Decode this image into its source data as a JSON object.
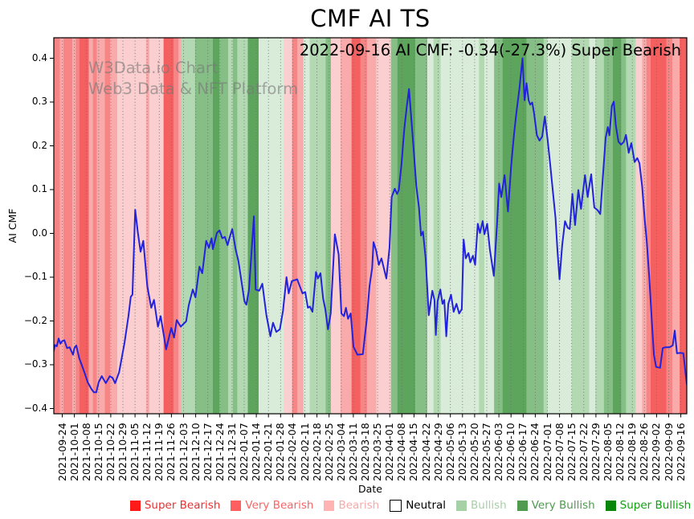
{
  "annotation": {
    "text": "2022-09-16 AI CMF: -0.34(-27.3%) Super Bearish"
  },
  "watermark": {
    "line1": "W3Data.io Chart",
    "line2": "Web3 Data & NFT Platform"
  },
  "chart_data": {
    "type": "line",
    "title": "CMF AI TS",
    "xlabel": "Date",
    "ylabel": "AI CMF",
    "ylim": [
      -0.41,
      0.45
    ],
    "grid": "weekly-vertical-dotted",
    "legend_position": "bottom",
    "line": {
      "name": "AI CMF",
      "color": "#2222dd"
    },
    "y_tick_labels": [
      "0.4",
      "0.3",
      "0.2",
      "0.1",
      "0.0",
      "−0.1",
      "−0.2",
      "−0.3",
      "−0.4"
    ],
    "x_tick_labels": [
      "2021-09-24",
      "2021-10-01",
      "2021-10-08",
      "2021-10-15",
      "2021-10-22",
      "2021-10-29",
      "2021-11-05",
      "2021-11-12",
      "2021-11-19",
      "2021-11-26",
      "2021-12-03",
      "2021-12-10",
      "2021-12-17",
      "2021-12-24",
      "2021-12-31",
      "2022-01-07",
      "2022-01-14",
      "2022-01-21",
      "2022-01-28",
      "2022-02-04",
      "2022-02-11",
      "2022-02-18",
      "2022-02-25",
      "2022-03-04",
      "2022-03-11",
      "2022-03-18",
      "2022-03-25",
      "2022-04-01",
      "2022-04-08",
      "2022-04-15",
      "2022-04-22",
      "2022-04-29",
      "2022-05-06",
      "2022-05-13",
      "2022-05-20",
      "2022-05-27",
      "2022-06-03",
      "2022-06-10",
      "2022-06-17",
      "2022-06-24",
      "2022-07-01",
      "2022-07-08",
      "2022-07-15",
      "2022-07-22",
      "2022-07-29",
      "2022-08-05",
      "2022-08-12",
      "2022-08-19",
      "2022-08-26",
      "2022-09-02",
      "2022-09-09",
      "2022-09-16"
    ],
    "series_points_weeks_value": [
      [
        -0.73,
        -0.272
      ],
      [
        -0.6,
        -0.255
      ],
      [
        -0.45,
        -0.258
      ],
      [
        -0.3,
        -0.24
      ],
      [
        -0.15,
        -0.252
      ],
      [
        0,
        -0.246
      ],
      [
        0.17,
        -0.244
      ],
      [
        0.4,
        -0.262
      ],
      [
        0.6,
        -0.26
      ],
      [
        0.89,
        -0.277
      ],
      [
        1,
        -0.262
      ],
      [
        1.16,
        -0.256
      ],
      [
        1.4,
        -0.285
      ],
      [
        1.6,
        -0.3
      ],
      [
        1.82,
        -0.317
      ],
      [
        2.1,
        -0.34
      ],
      [
        2.4,
        -0.355
      ],
      [
        2.6,
        -0.363
      ],
      [
        2.81,
        -0.363
      ],
      [
        3,
        -0.34
      ],
      [
        3.26,
        -0.326
      ],
      [
        3.59,
        -0.342
      ],
      [
        3.92,
        -0.326
      ],
      [
        4.15,
        -0.33
      ],
      [
        4.36,
        -0.342
      ],
      [
        4.69,
        -0.317
      ],
      [
        5.13,
        -0.25
      ],
      [
        5.46,
        -0.189
      ],
      [
        5.65,
        -0.145
      ],
      [
        5.79,
        -0.14
      ],
      [
        6.01,
        0.054
      ],
      [
        6.24,
        0.001
      ],
      [
        6.46,
        -0.042
      ],
      [
        6.68,
        -0.017
      ],
      [
        7.01,
        -0.121
      ],
      [
        7.34,
        -0.17
      ],
      [
        7.56,
        -0.152
      ],
      [
        7.89,
        -0.213
      ],
      [
        8.11,
        -0.189
      ],
      [
        8.56,
        -0.265
      ],
      [
        8.99,
        -0.216
      ],
      [
        9.22,
        -0.238
      ],
      [
        9.44,
        -0.198
      ],
      [
        9.77,
        -0.213
      ],
      [
        10.21,
        -0.201
      ],
      [
        10.43,
        -0.164
      ],
      [
        10.76,
        -0.128
      ],
      [
        10.98,
        -0.146
      ],
      [
        11.31,
        -0.076
      ],
      [
        11.54,
        -0.091
      ],
      [
        11.87,
        -0.017
      ],
      [
        12.09,
        -0.033
      ],
      [
        12.31,
        -0.011
      ],
      [
        12.42,
        -0.036
      ],
      [
        12.75,
        0.001
      ],
      [
        12.97,
        0.007
      ],
      [
        13.19,
        -0.011
      ],
      [
        13.41,
        -0.008
      ],
      [
        13.63,
        -0.027
      ],
      [
        13.85,
        -0.005
      ],
      [
        14.01,
        0.01
      ],
      [
        14.29,
        -0.036
      ],
      [
        14.52,
        -0.063
      ],
      [
        14.74,
        -0.103
      ],
      [
        15.02,
        -0.155
      ],
      [
        15.18,
        -0.163
      ],
      [
        15.4,
        -0.128
      ],
      [
        15.55,
        -0.066
      ],
      [
        15.8,
        0.039
      ],
      [
        15.95,
        -0.128
      ],
      [
        16.24,
        -0.131
      ],
      [
        16.5,
        -0.115
      ],
      [
        16.83,
        -0.186
      ],
      [
        17.16,
        -0.235
      ],
      [
        17.38,
        -0.204
      ],
      [
        17.65,
        -0.225
      ],
      [
        17.94,
        -0.219
      ],
      [
        18.2,
        -0.177
      ],
      [
        18.49,
        -0.1
      ],
      [
        18.67,
        -0.137
      ],
      [
        18.93,
        -0.109
      ],
      [
        19.37,
        -0.105
      ],
      [
        19.81,
        -0.137
      ],
      [
        20.03,
        -0.134
      ],
      [
        20.25,
        -0.17
      ],
      [
        20.41,
        -0.167
      ],
      [
        20.63,
        -0.179
      ],
      [
        20.92,
        -0.088
      ],
      [
        21.07,
        -0.103
      ],
      [
        21.29,
        -0.091
      ],
      [
        21.51,
        -0.149
      ],
      [
        21.69,
        -0.173
      ],
      [
        21.91,
        -0.219
      ],
      [
        22.13,
        -0.183
      ],
      [
        22.48,
        -0.002
      ],
      [
        22.79,
        -0.048
      ],
      [
        23.01,
        -0.183
      ],
      [
        23.23,
        -0.189
      ],
      [
        23.39,
        -0.17
      ],
      [
        23.56,
        -0.195
      ],
      [
        23.78,
        -0.183
      ],
      [
        24.01,
        -0.259
      ],
      [
        24.34,
        -0.277
      ],
      [
        24.78,
        -0.276
      ],
      [
        25.11,
        -0.195
      ],
      [
        25.33,
        -0.121
      ],
      [
        25.55,
        -0.079
      ],
      [
        25.66,
        -0.02
      ],
      [
        25.88,
        -0.039
      ],
      [
        26.1,
        -0.072
      ],
      [
        26.32,
        -0.057
      ],
      [
        26.72,
        -0.103
      ],
      [
        26.98,
        -0.033
      ],
      [
        27.16,
        0.083
      ],
      [
        27.42,
        0.102
      ],
      [
        27.6,
        0.09
      ],
      [
        27.75,
        0.099
      ],
      [
        27.97,
        0.157
      ],
      [
        28.19,
        0.236
      ],
      [
        28.41,
        0.291
      ],
      [
        28.59,
        0.33
      ],
      [
        28.75,
        0.273
      ],
      [
        28.97,
        0.194
      ],
      [
        29.19,
        0.108
      ],
      [
        29.41,
        0.059
      ],
      [
        29.58,
        -0.005
      ],
      [
        29.74,
        0.004
      ],
      [
        29.96,
        -0.057
      ],
      [
        30.22,
        -0.187
      ],
      [
        30.51,
        -0.131
      ],
      [
        30.69,
        -0.152
      ],
      [
        30.8,
        -0.232
      ],
      [
        30.95,
        -0.155
      ],
      [
        31.17,
        -0.128
      ],
      [
        31.35,
        -0.161
      ],
      [
        31.5,
        -0.152
      ],
      [
        31.66,
        -0.235
      ],
      [
        31.83,
        -0.161
      ],
      [
        32.05,
        -0.14
      ],
      [
        32.27,
        -0.179
      ],
      [
        32.5,
        -0.161
      ],
      [
        32.72,
        -0.183
      ],
      [
        32.94,
        -0.173
      ],
      [
        33.09,
        -0.014
      ],
      [
        33.27,
        -0.057
      ],
      [
        33.49,
        -0.045
      ],
      [
        33.64,
        -0.066
      ],
      [
        33.86,
        -0.051
      ],
      [
        34.04,
        -0.072
      ],
      [
        34.26,
        0.022
      ],
      [
        34.44,
        0.001
      ],
      [
        34.66,
        0.028
      ],
      [
        34.81,
        -0.002
      ],
      [
        35.03,
        0.022
      ],
      [
        35.25,
        -0.036
      ],
      [
        35.58,
        -0.097
      ],
      [
        35.85,
        0.022
      ],
      [
        36.02,
        0.114
      ],
      [
        36.2,
        0.083
      ],
      [
        36.47,
        0.133
      ],
      [
        36.75,
        0.05
      ],
      [
        37.02,
        0.157
      ],
      [
        37.24,
        0.224
      ],
      [
        37.46,
        0.279
      ],
      [
        37.68,
        0.328
      ],
      [
        37.95,
        0.4
      ],
      [
        38.12,
        0.304
      ],
      [
        38.28,
        0.343
      ],
      [
        38.45,
        0.304
      ],
      [
        38.58,
        0.294
      ],
      [
        38.75,
        0.299
      ],
      [
        38.91,
        0.273
      ],
      [
        39.13,
        0.224
      ],
      [
        39.35,
        0.212
      ],
      [
        39.57,
        0.221
      ],
      [
        39.79,
        0.267
      ],
      [
        40.01,
        0.215
      ],
      [
        40.23,
        0.157
      ],
      [
        40.45,
        0.096
      ],
      [
        40.67,
        0.035
      ],
      [
        40.83,
        -0.039
      ],
      [
        41,
        -0.105
      ],
      [
        41.22,
        -0.027
      ],
      [
        41.45,
        0.028
      ],
      [
        41.67,
        0.013
      ],
      [
        41.84,
        0.01
      ],
      [
        42.06,
        0.09
      ],
      [
        42.28,
        0.019
      ],
      [
        42.55,
        0.099
      ],
      [
        42.77,
        0.056
      ],
      [
        43.1,
        0.133
      ],
      [
        43.32,
        0.083
      ],
      [
        43.61,
        0.135
      ],
      [
        43.87,
        0.059
      ],
      [
        44.14,
        0.053
      ],
      [
        44.36,
        0.044
      ],
      [
        44.58,
        0.133
      ],
      [
        44.8,
        0.218
      ],
      [
        44.98,
        0.243
      ],
      [
        45.11,
        0.224
      ],
      [
        45.31,
        0.291
      ],
      [
        45.47,
        0.301
      ],
      [
        45.64,
        0.246
      ],
      [
        45.86,
        0.209
      ],
      [
        46.08,
        0.203
      ],
      [
        46.3,
        0.209
      ],
      [
        46.48,
        0.225
      ],
      [
        46.7,
        0.184
      ],
      [
        46.92,
        0.206
      ],
      [
        47.19,
        0.163
      ],
      [
        47.41,
        0.172
      ],
      [
        47.59,
        0.16
      ],
      [
        47.81,
        0.108
      ],
      [
        48.03,
        0.028
      ],
      [
        48.18,
        -0.014
      ],
      [
        48.4,
        -0.1
      ],
      [
        48.63,
        -0.21
      ],
      [
        48.78,
        -0.277
      ],
      [
        48.96,
        -0.305
      ],
      [
        49.29,
        -0.307
      ],
      [
        49.51,
        -0.262
      ],
      [
        49.73,
        -0.26
      ],
      [
        50.06,
        -0.26
      ],
      [
        50.33,
        -0.256
      ],
      [
        50.5,
        -0.222
      ],
      [
        50.68,
        -0.274
      ],
      [
        50.94,
        -0.273
      ],
      [
        51.21,
        -0.274
      ],
      [
        51.39,
        -0.32
      ],
      [
        51.5,
        -0.345
      ]
    ],
    "band_colors": {
      "super_bearish": "#f45f5f",
      "very_bearish": "#f78585",
      "bearish": "#f9aaaa",
      "bearish_pale": "#fbcfcf",
      "neutral": "#ffffff",
      "bullish_pale": "#d9ecd9",
      "bullish": "#b3d9b3",
      "very_bullish": "#85bf85",
      "super_bullish": "#5da55d"
    },
    "sentiment_bands": [
      [
        -0.75,
        -0.2,
        "very_bearish"
      ],
      [
        -0.2,
        0.08,
        "bearish"
      ],
      [
        0.08,
        0.85,
        "very_bearish"
      ],
      [
        0.85,
        1.1,
        "bearish"
      ],
      [
        1.1,
        1.4,
        "very_bearish"
      ],
      [
        1.4,
        2.2,
        "super_bearish"
      ],
      [
        2.2,
        2.5,
        "bearish"
      ],
      [
        2.5,
        2.85,
        "very_bearish"
      ],
      [
        2.85,
        3.5,
        "bearish"
      ],
      [
        3.5,
        3.95,
        "very_bearish"
      ],
      [
        3.95,
        4.55,
        "bearish"
      ],
      [
        4.55,
        6.9,
        "bearish_pale"
      ],
      [
        6.9,
        7.2,
        "bearish"
      ],
      [
        7.2,
        8.35,
        "bearish_pale"
      ],
      [
        8.35,
        9.2,
        "super_bearish"
      ],
      [
        9.2,
        9.6,
        "very_bearish"
      ],
      [
        9.6,
        9.8,
        "bearish"
      ],
      [
        9.8,
        10.95,
        "bullish"
      ],
      [
        10.95,
        12.4,
        "very_bullish"
      ],
      [
        12.4,
        12.95,
        "super_bullish"
      ],
      [
        12.95,
        13.7,
        "very_bullish"
      ],
      [
        13.7,
        14.05,
        "bullish"
      ],
      [
        14.05,
        14.45,
        "very_bullish"
      ],
      [
        14.45,
        15.3,
        "bullish"
      ],
      [
        15.3,
        16.2,
        "super_bullish"
      ],
      [
        16.2,
        18.25,
        "bullish_pale"
      ],
      [
        18.25,
        18.95,
        "bearish_pale"
      ],
      [
        18.95,
        19.4,
        "very_bearish"
      ],
      [
        19.4,
        19.9,
        "bearish"
      ],
      [
        19.9,
        20.4,
        "bullish_pale"
      ],
      [
        20.4,
        21.7,
        "bullish"
      ],
      [
        21.7,
        22.15,
        "very_bullish"
      ],
      [
        22.15,
        22.95,
        "bearish_pale"
      ],
      [
        22.95,
        23.85,
        "bearish"
      ],
      [
        23.85,
        24.6,
        "super_bearish"
      ],
      [
        24.6,
        25.15,
        "very_bearish"
      ],
      [
        25.15,
        25.9,
        "bearish"
      ],
      [
        25.9,
        27.1,
        "bearish_pale"
      ],
      [
        27.1,
        27.6,
        "very_bullish"
      ],
      [
        27.6,
        29.1,
        "super_bullish"
      ],
      [
        29.1,
        30.1,
        "very_bullish"
      ],
      [
        30.1,
        30.6,
        "bullish_pale"
      ],
      [
        30.6,
        31.2,
        "bullish"
      ],
      [
        31.2,
        34.35,
        "bullish_pale"
      ],
      [
        34.35,
        34.8,
        "bullish"
      ],
      [
        34.8,
        35.6,
        "bullish_pale"
      ],
      [
        35.6,
        36.3,
        "very_bullish"
      ],
      [
        36.3,
        38.3,
        "super_bullish"
      ],
      [
        38.3,
        39.7,
        "very_bullish"
      ],
      [
        39.7,
        40.0,
        "bullish"
      ],
      [
        40.0,
        42.0,
        "bullish_pale"
      ],
      [
        42.0,
        43.45,
        "bullish"
      ],
      [
        43.45,
        43.95,
        "bullish_pale"
      ],
      [
        43.95,
        44.65,
        "bullish"
      ],
      [
        44.65,
        45.4,
        "very_bullish"
      ],
      [
        45.4,
        46.1,
        "super_bullish"
      ],
      [
        46.1,
        46.5,
        "very_bullish"
      ],
      [
        46.5,
        47.3,
        "bullish"
      ],
      [
        47.3,
        47.8,
        "bearish_pale"
      ],
      [
        47.8,
        48.15,
        "bearish"
      ],
      [
        48.15,
        48.5,
        "very_bearish"
      ],
      [
        48.5,
        49.8,
        "super_bearish"
      ],
      [
        49.8,
        50.3,
        "very_bearish"
      ],
      [
        50.3,
        50.9,
        "bearish"
      ],
      [
        50.9,
        51.55,
        "super_bearish"
      ]
    ],
    "legend": [
      {
        "label": "Super Bearish",
        "swatch": "#ff1a1a",
        "text_color": "#e43333",
        "border": false
      },
      {
        "label": "Very Bearish",
        "swatch": "#ff5f5f",
        "text_color": "#f56666",
        "border": false
      },
      {
        "label": "Bearish",
        "swatch": "#ffb3b3",
        "text_color": "#f7aaaa",
        "border": false
      },
      {
        "label": "Neutral",
        "swatch": "#ffffff",
        "text_color": "#000000",
        "border": true
      },
      {
        "label": "Bullish",
        "swatch": "#a6d0a6",
        "text_color": "#a8cea8",
        "border": false
      },
      {
        "label": "Very Bullish",
        "swatch": "#519b51",
        "text_color": "#4e9b4e",
        "border": false
      },
      {
        "label": "Super Bullish",
        "swatch": "#0a870a",
        "text_color": "#12a012",
        "border": false
      }
    ],
    "last_point": {
      "date": "2022-09-16",
      "value": -0.34,
      "change_pct": "-27.3%",
      "sentiment": "Super Bearish"
    }
  }
}
